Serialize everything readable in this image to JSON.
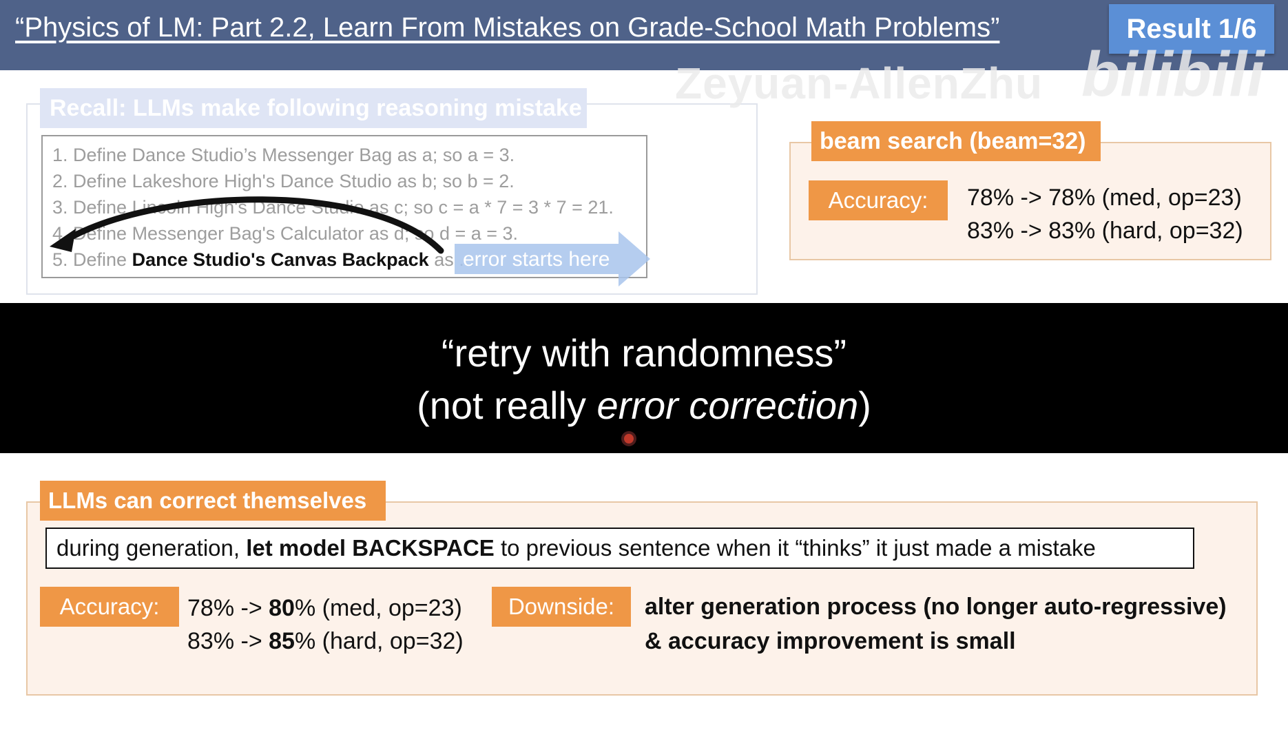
{
  "header": {
    "title": "“Physics of LM: Part 2.2, Learn From Mistakes on Grade-School Math Problems”",
    "badge": "Result 1/6"
  },
  "watermark": {
    "author": "Zeyuan-AllenZhu",
    "logo": "bilibili"
  },
  "recall": {
    "heading": "Recall: LLMs make following reasoning mistake",
    "steps": [
      "1. Define Dance Studio’s Messenger Bag as a; so a = 3.",
      "2. Define Lakeshore High's Dance Studio as b; so b = 2.",
      "3. Define Lincoln High's Dance Studio as c; so c = a * 7 = 3 * 7 = 21.",
      "4. Define Messenger Bag's Calculator as d; so d = a = 3."
    ],
    "step5_prefix": "5. Define ",
    "step5_bold": "Dance Studio's Canvas Backpack",
    "step5_suffix": " as ...",
    "error_label": "error starts here"
  },
  "beam": {
    "heading": "beam search (beam=32)",
    "accuracy_label": "Accuracy:",
    "line1": "78% -> 78% (med, op=23)",
    "line2": "83% -> 83% (hard, op=32)"
  },
  "band": {
    "line1": "“retry with randomness”",
    "line2_prefix": "(not really ",
    "line2_italic": "error correction",
    "line2_suffix": ")"
  },
  "correct": {
    "heading": "LLMs can correct themselves",
    "desc_prefix": "during generation, ",
    "desc_bold": "let model BACKSPACE",
    "desc_suffix": " to previous sentence when it “thinks” it just made a mistake",
    "accuracy_label": "Accuracy:",
    "r1_prefix": "78% -> ",
    "r1_bold": "80",
    "r1_suffix": "% (med, op=23)",
    "r2_prefix": "83% -> ",
    "r2_bold": "85",
    "r2_suffix": "% (hard, op=32)",
    "downside_label": "Downside:",
    "downside_line1": "alter generation process (no longer auto-regressive)",
    "downside_line2": "& accuracy improvement is small"
  },
  "colors": {
    "header_bg": "#4f6289",
    "badge_bg": "#5b8fd6",
    "accent_orange": "#ef9746",
    "panel_bg": "#fdf2ea"
  }
}
